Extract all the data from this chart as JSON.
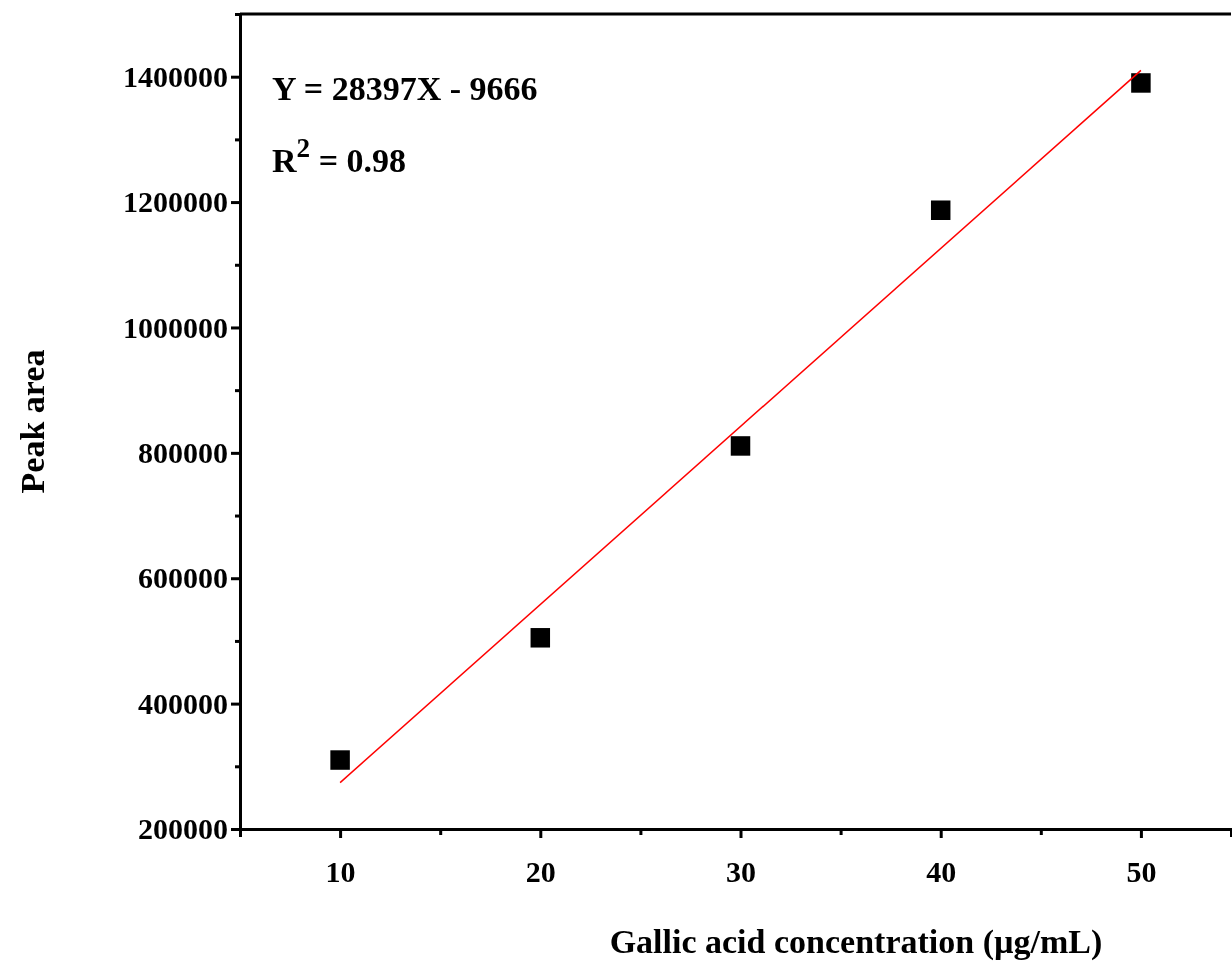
{
  "chart_data": {
    "type": "scatter",
    "xlabel": "Gallic acid concentration (µg/mL)",
    "ylabel": "Peak area",
    "xlim": [
      5,
      54.5
    ],
    "ylim": [
      200000,
      1500000
    ],
    "xticks": [
      {
        "value": 5,
        "label": null
      },
      10,
      {
        "value": 15,
        "label": null
      },
      20,
      {
        "value": 25,
        "label": null
      },
      30,
      {
        "value": 35,
        "label": null
      },
      40,
      {
        "value": 45,
        "label": null
      },
      50
    ],
    "yticks": [
      200000,
      {
        "value": 300000,
        "label": null
      },
      400000,
      {
        "value": 500000,
        "label": null
      },
      600000,
      {
        "value": 700000,
        "label": null
      },
      800000,
      {
        "value": 900000,
        "label": null
      },
      1000000,
      {
        "value": 1100000,
        "label": null
      },
      1200000,
      {
        "value": 1300000,
        "label": null
      },
      1400000,
      {
        "value": 1500000,
        "label": null
      }
    ],
    "grid": false,
    "annotations": [
      "Y = 28397X - 9666",
      "R$^{2}$ = 0.98"
    ],
    "series": [
      {
        "marker": "square",
        "color": "#000000",
        "x": [
          10,
          20,
          30,
          40,
          50
        ],
        "values": [
          310000,
          505000,
          811000,
          1187000,
          1390000
        ]
      },
      {
        "type": "line",
        "marker": "none",
        "color": "#ff0000",
        "x": [
          10,
          50
        ],
        "values": [
          274000,
          1410000
        ]
      }
    ]
  }
}
